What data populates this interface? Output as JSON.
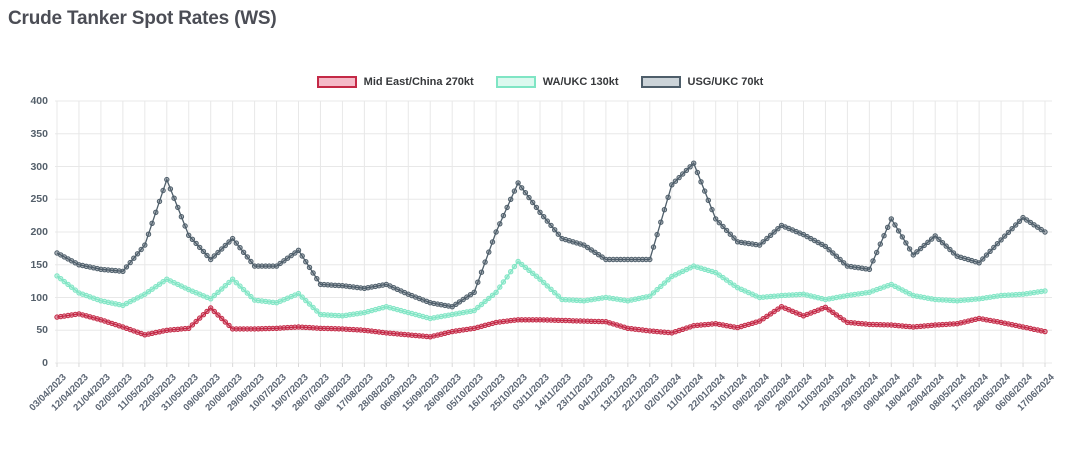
{
  "page": {
    "title": "Crude Tanker Spot Rates (WS)"
  },
  "colors": {
    "background": "#ffffff",
    "title_text": "#4b4d55",
    "axis_label_text": "#5b6573",
    "gridline": "#e8e8e8",
    "tick_mark": "#d9d9d9",
    "legend_label_text": "#36383b"
  },
  "chart_data": {
    "type": "line",
    "title": "Crude Tanker Spot Rates (WS)",
    "xlabel": "",
    "ylabel": "",
    "ylim": [
      0,
      400
    ],
    "yticks": [
      0,
      50,
      100,
      150,
      200,
      250,
      300,
      350,
      400
    ],
    "grid": true,
    "legend_position": "top",
    "marker": "circle",
    "x": [
      "03/04/2023",
      "12/04/2023",
      "21/04/2023",
      "02/05/2023",
      "11/05/2023",
      "22/05/2023",
      "31/05/2023",
      "09/06/2023",
      "20/06/2023",
      "29/06/2023",
      "10/07/2023",
      "19/07/2023",
      "28/07/2023",
      "08/08/2023",
      "17/08/2023",
      "28/08/2023",
      "06/09/2023",
      "15/09/2023",
      "26/09/2023",
      "05/10/2023",
      "16/10/2023",
      "25/10/2023",
      "03/11/2023",
      "14/11/2023",
      "23/11/2023",
      "04/12/2023",
      "13/12/2023",
      "22/12/2023",
      "02/01/2024",
      "11/01/2024",
      "22/01/2024",
      "31/01/2024",
      "09/02/2024",
      "20/02/2024",
      "29/02/2024",
      "11/03/2024",
      "20/03/2024",
      "29/03/2024",
      "09/04/2024",
      "18/04/2024",
      "29/04/2024",
      "08/05/2024",
      "17/05/2024",
      "28/05/2024",
      "06/06/2024",
      "17/06/2024"
    ],
    "series": [
      {
        "name": "Mid East/China 270kt",
        "color": "#c42946",
        "swatch_fill": "#f5bac8",
        "values": [
          70,
          75,
          66,
          55,
          43,
          50,
          53,
          84,
          52,
          52,
          53,
          55,
          53,
          52,
          50,
          46,
          43,
          40,
          48,
          53,
          62,
          66,
          66,
          65,
          64,
          63,
          53,
          49,
          46,
          57,
          60,
          54,
          64,
          86,
          72,
          85,
          62,
          59,
          58,
          55,
          58,
          60,
          68,
          62,
          55,
          48
        ]
      },
      {
        "name": "WA/UKC 130kt",
        "color": "#7fe5c4",
        "swatch_fill": "#dcf9ef",
        "values": [
          133,
          107,
          95,
          88,
          105,
          128,
          112,
          98,
          128,
          96,
          92,
          106,
          74,
          72,
          77,
          86,
          77,
          68,
          74,
          80,
          108,
          155,
          128,
          97,
          95,
          100,
          95,
          102,
          132,
          148,
          138,
          115,
          100,
          103,
          105,
          97,
          103,
          108,
          120,
          103,
          97,
          95,
          98,
          103,
          105,
          110
        ]
      },
      {
        "name": "USG/UKC 70kt",
        "color": "#4e5e6a",
        "swatch_fill": "#ccd4d9",
        "values": [
          168,
          150,
          143,
          140,
          180,
          280,
          195,
          158,
          190,
          148,
          148,
          172,
          120,
          118,
          114,
          120,
          105,
          92,
          86,
          108,
          200,
          275,
          230,
          190,
          180,
          158,
          158,
          158,
          272,
          305,
          220,
          185,
          180,
          210,
          196,
          178,
          148,
          143,
          220,
          165,
          194,
          163,
          153,
          188,
          222,
          200
        ]
      }
    ]
  }
}
